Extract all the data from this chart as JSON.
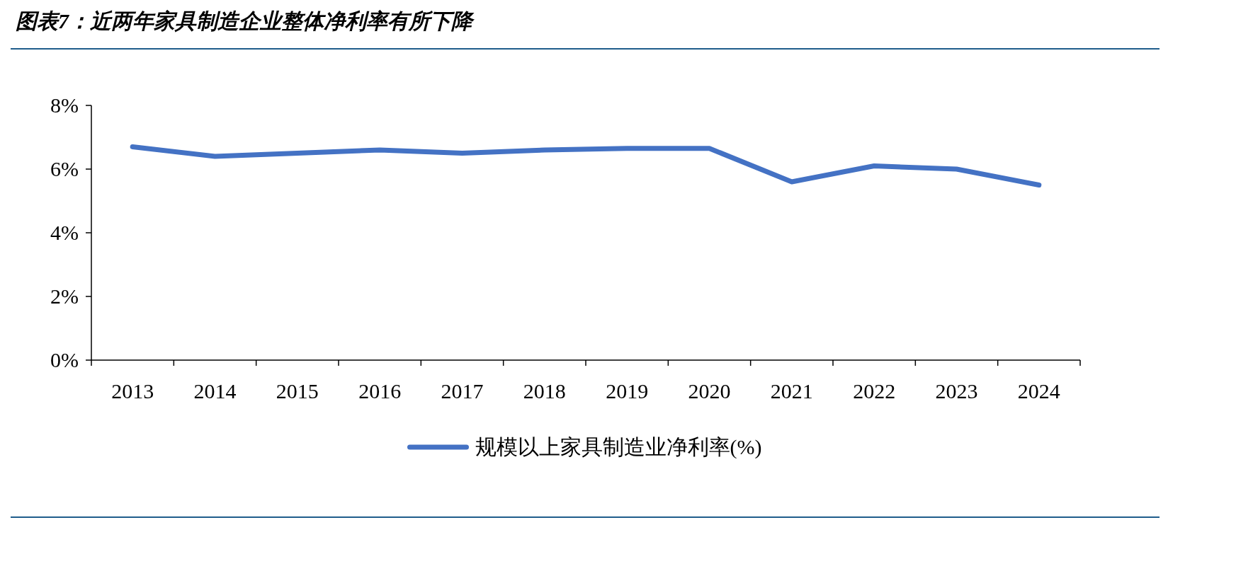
{
  "chart_data": {
    "type": "line",
    "title": "图表7：近两年家具制造企业整体净利率有所下降",
    "categories": [
      "2013",
      "2014",
      "2015",
      "2016",
      "2017",
      "2018",
      "2019",
      "2020",
      "2021",
      "2022",
      "2023",
      "2024"
    ],
    "series": [
      {
        "name": "规模以上家具制造业净利率(%)",
        "color": "#4472c4",
        "values": [
          6.7,
          6.4,
          6.5,
          6.6,
          6.5,
          6.6,
          6.65,
          6.65,
          5.6,
          6.1,
          6.0,
          5.5
        ]
      }
    ],
    "ylim": [
      0,
      8
    ],
    "yticks": [
      {
        "value": 0,
        "label": "0%"
      },
      {
        "value": 2,
        "label": "2%"
      },
      {
        "value": 4,
        "label": "4%"
      },
      {
        "value": 6,
        "label": "6%"
      },
      {
        "value": 8,
        "label": "8%"
      }
    ],
    "legend": "bottom",
    "grid": false,
    "marker": "none",
    "line_style": "solid"
  }
}
